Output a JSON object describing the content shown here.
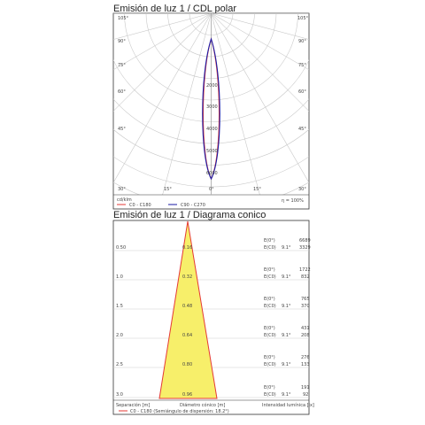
{
  "polar": {
    "title": "Emisión de luz 1 / CDL polar",
    "angle_labels_left": [
      "105°",
      "90°",
      "75°",
      "60°",
      "45°"
    ],
    "angle_labels_right": [
      "105°",
      "90°",
      "75°",
      "60°",
      "45°"
    ],
    "bottom_angle_labels": [
      "30°",
      "15°",
      "0°",
      "15°",
      "30°"
    ],
    "radial_labels": [
      "2000",
      "3000",
      "4000",
      "5000",
      "6000"
    ],
    "unit": "cd/klm",
    "efficiency": "η = 100%",
    "legend": [
      {
        "label": "C0 - C180",
        "color": "#e53935"
      },
      {
        "label": "C90 - C270",
        "color": "#1a1aa6"
      }
    ],
    "chart_data": {
      "type": "polar",
      "series": [
        {
          "name": "C0 - C180",
          "color": "#e53935"
        },
        {
          "name": "C90 - C270",
          "color": "#1a1aa6"
        }
      ],
      "peak_intensity_cd_klm": 6000,
      "half_angle_deg": 9.1
    }
  },
  "cone": {
    "title": "Emisión de luz 1 / Diagrama conico",
    "distance_labels": [
      "0.50",
      "1.0",
      "1.5",
      "2.0",
      "2.5",
      "3.0"
    ],
    "diameter_labels": [
      "0.16",
      "0.32",
      "0.48",
      "0.64",
      "0.80",
      "0.96"
    ],
    "rows": [
      {
        "e0": "E(0°)",
        "ec": "E(C0)",
        "angle": "9.1°",
        "v1": "6689",
        "v2": "3329"
      },
      {
        "e0": "E(0°)",
        "ec": "E(C0)",
        "angle": "9.1°",
        "v1": "1722",
        "v2": "832"
      },
      {
        "e0": "E(0°)",
        "ec": "E(C0)",
        "angle": "9.1°",
        "v1": "765",
        "v2": "370"
      },
      {
        "e0": "E(0°)",
        "ec": "E(C0)",
        "angle": "9.1°",
        "v1": "431",
        "v2": "208"
      },
      {
        "e0": "E(0°)",
        "ec": "E(C0)",
        "angle": "9.1°",
        "v1": "276",
        "v2": "133"
      },
      {
        "e0": "E(0°)",
        "ec": "E(C0)",
        "angle": "9.1°",
        "v1": "191",
        "v2": "92"
      }
    ],
    "footer": {
      "separation": "Separación [m]",
      "diameter": "Diámetro cónico [m]",
      "intensity": "Intensidad lumínica [lx]",
      "legend": "C0 - C180 (Semiángulo de dispersión: 18.2°)"
    },
    "colors": {
      "cone_fill": "#f7ef6a",
      "cone_stroke": "#e53935"
    },
    "chart_data": {
      "type": "table",
      "half_spread_angle_deg": 18.2,
      "distances_m": [
        0.5,
        1.0,
        1.5,
        2.0,
        2.5,
        3.0
      ],
      "diameters_m": [
        0.16,
        0.32,
        0.48,
        0.64,
        0.8,
        0.96
      ],
      "e_0deg_lx": [
        6689,
        1722,
        765,
        431,
        276,
        191
      ],
      "e_c0_lx": [
        3329,
        832,
        370,
        208,
        133,
        92
      ]
    }
  }
}
